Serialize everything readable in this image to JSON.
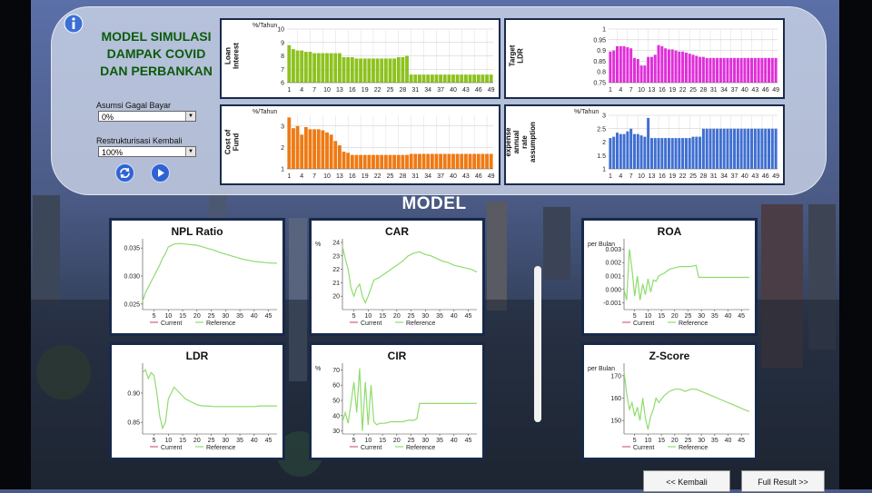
{
  "header": {
    "title_lines": [
      "MODEL SIMULASI",
      "DAMPAK COVID",
      "DAN PERBANKAN"
    ]
  },
  "controls": {
    "default_rate_label": "Asumsi Gagal Bayar",
    "default_rate_value": "0%",
    "restructuring_label": "Restrukturisasi Kembali",
    "restructuring_value": "100%"
  },
  "icons": {
    "info": "info-icon",
    "reset": "refresh-icon",
    "run": "play-icon"
  },
  "section_title": "MODEL",
  "input_charts": [
    {
      "id": "loan-interest",
      "ylabel": "Loan Interest",
      "unit": "%/Tahun",
      "color": "#8dc21f",
      "ylim": [
        6,
        10
      ],
      "yticks": [
        6,
        7,
        8,
        9,
        10
      ],
      "values": [
        8.8,
        8.5,
        8.4,
        8.4,
        8.3,
        8.3,
        8.2,
        8.2,
        8.2,
        8.2,
        8.2,
        8.2,
        8.2,
        7.9,
        7.9,
        7.9,
        7.8,
        7.8,
        7.8,
        7.8,
        7.8,
        7.8,
        7.8,
        7.8,
        7.8,
        7.8,
        7.9,
        7.9,
        8.0,
        6.6,
        6.6,
        6.6,
        6.6,
        6.6,
        6.6,
        6.6,
        6.6,
        6.6,
        6.6,
        6.6,
        6.6,
        6.6,
        6.6,
        6.6,
        6.6,
        6.6,
        6.6,
        6.6,
        6.6
      ]
    },
    {
      "id": "target-ldr",
      "ylabel": "Target LDR",
      "unit": "",
      "color": "#e02fd9",
      "ylim": [
        0.75,
        1.0
      ],
      "yticks": [
        0.75,
        0.8,
        0.85,
        0.9,
        0.95,
        1.0
      ],
      "values": [
        0.895,
        0.9,
        0.92,
        0.92,
        0.92,
        0.915,
        0.91,
        0.865,
        0.86,
        0.83,
        0.83,
        0.87,
        0.87,
        0.88,
        0.925,
        0.92,
        0.91,
        0.905,
        0.905,
        0.9,
        0.895,
        0.895,
        0.89,
        0.885,
        0.88,
        0.875,
        0.87,
        0.87,
        0.865,
        0.865,
        0.865,
        0.865,
        0.865,
        0.865,
        0.865,
        0.865,
        0.865,
        0.865,
        0.865,
        0.865,
        0.865,
        0.865,
        0.865,
        0.865,
        0.865,
        0.865,
        0.865,
        0.865,
        0.865
      ]
    },
    {
      "id": "cost-of-fund",
      "ylabel": "Cost of Fund",
      "unit": "%/Tahun",
      "color": "#ee7a14",
      "ylim": [
        1,
        3.5
      ],
      "yticks": [
        1,
        2,
        3
      ],
      "values": [
        3.4,
        2.9,
        3.0,
        2.6,
        2.95,
        2.85,
        2.85,
        2.85,
        2.8,
        2.7,
        2.6,
        2.3,
        2.1,
        1.8,
        1.75,
        1.65,
        1.65,
        1.65,
        1.65,
        1.65,
        1.65,
        1.65,
        1.65,
        1.65,
        1.65,
        1.65,
        1.65,
        1.65,
        1.65,
        1.7,
        1.7,
        1.7,
        1.7,
        1.7,
        1.7,
        1.7,
        1.7,
        1.7,
        1.7,
        1.7,
        1.7,
        1.7,
        1.7,
        1.7,
        1.7,
        1.7,
        1.7,
        1.7,
        1.7
      ]
    },
    {
      "id": "operating-expense",
      "ylabel": "Operating expense annual rate assumption",
      "unit": "%/Tahun",
      "color": "#3f6fd1",
      "ylim": [
        1.0,
        3.0
      ],
      "yticks": [
        1.0,
        1.5,
        2.0,
        2.5,
        3.0
      ],
      "values": [
        2.15,
        2.2,
        2.35,
        2.3,
        2.3,
        2.4,
        2.5,
        2.3,
        2.3,
        2.25,
        2.2,
        2.9,
        2.15,
        2.15,
        2.15,
        2.15,
        2.15,
        2.15,
        2.15,
        2.15,
        2.15,
        2.15,
        2.15,
        2.15,
        2.2,
        2.2,
        2.2,
        2.5,
        2.5,
        2.5,
        2.5,
        2.5,
        2.5,
        2.5,
        2.5,
        2.5,
        2.5,
        2.5,
        2.5,
        2.5,
        2.5,
        2.5,
        2.5,
        2.5,
        2.5,
        2.5,
        2.5,
        2.5,
        2.5
      ]
    }
  ],
  "legend": {
    "current_label": "Current",
    "reference_label": "Reference",
    "current_color": "#d0607a",
    "reference_color": "#8fdc6e"
  },
  "chart_data": [
    {
      "type": "line",
      "title": "NPL Ratio",
      "unit": "",
      "ylim": [
        0.024,
        0.036
      ],
      "yticks": [
        0.025,
        0.03,
        0.035
      ],
      "tick_digits": 3,
      "x": [
        1,
        2,
        3,
        4,
        5,
        6,
        7,
        8,
        9,
        10,
        12,
        14,
        16,
        18,
        20,
        22,
        24,
        26,
        28,
        30,
        32,
        34,
        36,
        38,
        40,
        42,
        44,
        46,
        48
      ],
      "series": [
        {
          "name": "Reference",
          "values": [
            0.0255,
            0.027,
            0.028,
            0.029,
            0.03,
            0.031,
            0.032,
            0.0332,
            0.034,
            0.0352,
            0.0357,
            0.0358,
            0.0357,
            0.0356,
            0.0355,
            0.0352,
            0.0349,
            0.0346,
            0.0342,
            0.0339,
            0.0336,
            0.0333,
            0.033,
            0.0328,
            0.0326,
            0.0325,
            0.0324,
            0.0323,
            0.0323
          ]
        }
      ]
    },
    {
      "type": "line",
      "title": "CAR",
      "unit": "%",
      "ylim": [
        19,
        24
      ],
      "yticks": [
        20,
        21,
        22,
        23,
        24
      ],
      "tick_digits": 0,
      "x": [
        1,
        2,
        3,
        4,
        5,
        6,
        7,
        8,
        9,
        10,
        11,
        12,
        14,
        16,
        18,
        20,
        22,
        24,
        26,
        28,
        30,
        32,
        34,
        36,
        38,
        40,
        42,
        44,
        46,
        48
      ],
      "series": [
        {
          "name": "Reference",
          "values": [
            23.7,
            22.8,
            22.0,
            20.6,
            20.0,
            20.6,
            20.9,
            20.0,
            19.5,
            20.0,
            20.6,
            21.2,
            21.4,
            21.7,
            22.0,
            22.3,
            22.6,
            23.0,
            23.2,
            23.3,
            23.1,
            23.0,
            22.8,
            22.6,
            22.5,
            22.3,
            22.2,
            22.1,
            22.0,
            21.8
          ]
        }
      ]
    },
    {
      "type": "line",
      "title": "ROA",
      "unit": "per Bulan",
      "ylim": [
        -0.0015,
        0.0035
      ],
      "yticks": [
        -0.001,
        0.0,
        0.001,
        0.002,
        0.003
      ],
      "tick_digits": 3,
      "x": [
        1,
        2,
        3,
        4,
        5,
        6,
        7,
        8,
        9,
        10,
        11,
        12,
        13,
        14,
        16,
        18,
        20,
        22,
        24,
        26,
        28,
        29,
        30,
        32,
        34,
        36,
        38,
        40,
        42,
        44,
        46,
        48
      ],
      "series": [
        {
          "name": "Reference",
          "values": [
            0.0,
            -0.0008,
            0.003,
            0.0015,
            -0.0005,
            0.001,
            -0.0008,
            0.0004,
            -0.0004,
            0.0008,
            -0.0002,
            0.0007,
            0.0006,
            0.001,
            0.0012,
            0.0015,
            0.0016,
            0.0017,
            0.0017,
            0.0017,
            0.0018,
            0.0009,
            0.0009,
            0.0009,
            0.0009,
            0.0009,
            0.0009,
            0.0009,
            0.0009,
            0.0009,
            0.0009,
            0.0009
          ]
        }
      ]
    },
    {
      "type": "line",
      "title": "LDR",
      "unit": "",
      "ylim": [
        0.83,
        0.945
      ],
      "yticks": [
        0.85,
        0.9
      ],
      "tick_digits": 2,
      "x": [
        1,
        2,
        3,
        4,
        5,
        6,
        7,
        8,
        9,
        10,
        11,
        12,
        14,
        16,
        18,
        20,
        22,
        24,
        26,
        28,
        30,
        32,
        34,
        36,
        38,
        40,
        42,
        44,
        46,
        48
      ],
      "series": [
        {
          "name": "Reference",
          "values": [
            0.935,
            0.94,
            0.925,
            0.935,
            0.93,
            0.9,
            0.86,
            0.84,
            0.85,
            0.89,
            0.9,
            0.91,
            0.9,
            0.89,
            0.885,
            0.88,
            0.878,
            0.878,
            0.877,
            0.877,
            0.877,
            0.877,
            0.877,
            0.877,
            0.877,
            0.877,
            0.878,
            0.878,
            0.878,
            0.878
          ]
        }
      ]
    },
    {
      "type": "line",
      "title": "CIR",
      "unit": "%",
      "ylim": [
        28,
        72
      ],
      "yticks": [
        30,
        40,
        50,
        60,
        70
      ],
      "tick_digits": 0,
      "x": [
        1,
        2,
        3,
        4,
        5,
        6,
        7,
        8,
        9,
        10,
        11,
        12,
        13,
        14,
        16,
        18,
        20,
        22,
        24,
        26,
        27,
        28,
        29,
        30,
        32,
        34,
        36,
        38,
        40,
        42,
        44,
        46,
        48
      ],
      "series": [
        {
          "name": "Reference",
          "values": [
            36,
            42,
            35,
            48,
            62,
            42,
            71,
            30,
            62,
            34,
            60,
            36,
            34,
            35,
            35,
            36,
            36,
            36,
            37,
            37,
            38,
            48,
            48,
            48,
            48,
            48,
            48,
            48,
            48,
            48,
            48,
            48,
            48
          ]
        }
      ]
    },
    {
      "type": "line",
      "title": "Z-Score",
      "unit": "per Bulan",
      "ylim": [
        144,
        174
      ],
      "yticks": [
        150,
        160,
        170
      ],
      "tick_digits": 0,
      "x": [
        1,
        2,
        3,
        4,
        5,
        6,
        7,
        8,
        9,
        10,
        11,
        12,
        13,
        14,
        16,
        18,
        20,
        22,
        24,
        26,
        28,
        30,
        32,
        34,
        36,
        38,
        40,
        42,
        44,
        46,
        48
      ],
      "series": [
        {
          "name": "Reference",
          "values": [
            172,
            162,
            155,
            158,
            152,
            156,
            150,
            160,
            151,
            146,
            152,
            155,
            160,
            158,
            161,
            163,
            164,
            164,
            163,
            164,
            164,
            163,
            162,
            161,
            160,
            159,
            158,
            157,
            156,
            155,
            154
          ]
        }
      ]
    }
  ],
  "footer": {
    "back_label": "<< Kembali",
    "full_result_label": "Full Result >>"
  }
}
